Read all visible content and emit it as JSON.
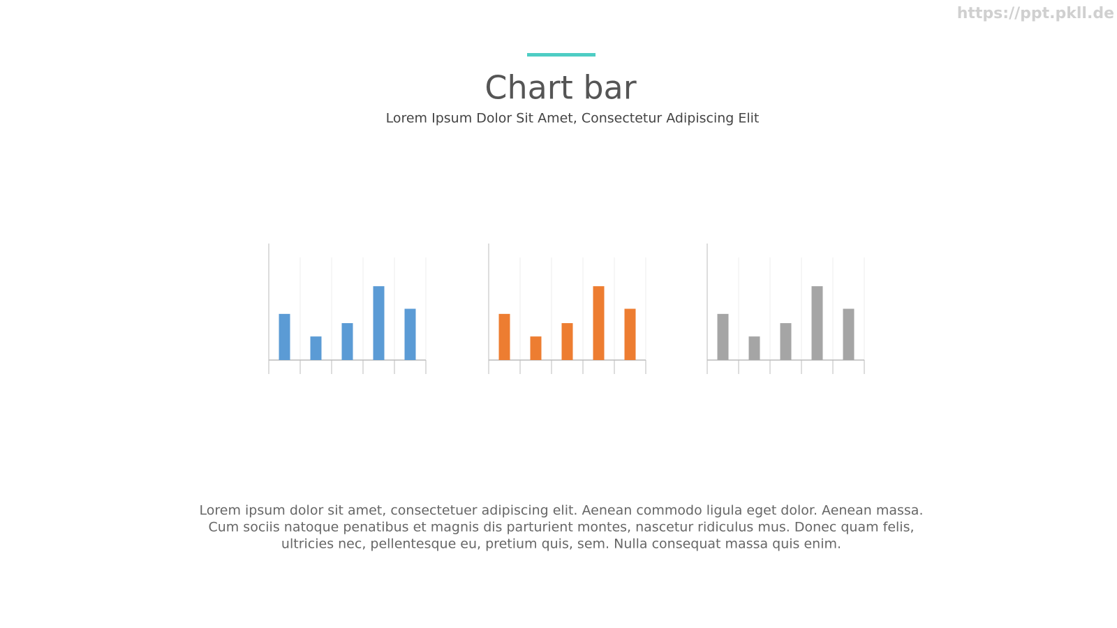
{
  "header": {
    "title": "Chart bar",
    "subtitle": "Lorem Ipsum Dolor Sit Amet, Consectetur Adipiscing Elit"
  },
  "watermark": "https://ppt.pkll.de",
  "chart_data": [
    {
      "type": "bar",
      "categories": [
        null,
        null,
        null,
        null,
        null
      ],
      "values": [
        45,
        23,
        36,
        72,
        50
      ],
      "color": "#5b9bd5",
      "ylim": [
        0,
        100
      ]
    },
    {
      "type": "bar",
      "categories": [
        null,
        null,
        null,
        null,
        null
      ],
      "values": [
        45,
        23,
        36,
        72,
        50
      ],
      "color": "#ed7d31",
      "ylim": [
        0,
        100
      ]
    },
    {
      "type": "bar",
      "categories": [
        null,
        null,
        null,
        null,
        null
      ],
      "values": [
        45,
        23,
        36,
        72,
        50
      ],
      "color": "#a5a5a5",
      "ylim": [
        0,
        100
      ]
    }
  ],
  "body": {
    "lines": [
      "Lorem ipsum dolor sit amet, consectetuer adipiscing elit. Aenean commodo ligula eget dolor. Aenean massa.",
      "Cum sociis natoque penatibus et magnis dis parturient montes, nascetur ridiculus mus. Donec quam felis,",
      "ultricies nec, pellentesque eu, pretium quis, sem. Nulla consequat massa quis enim."
    ]
  }
}
